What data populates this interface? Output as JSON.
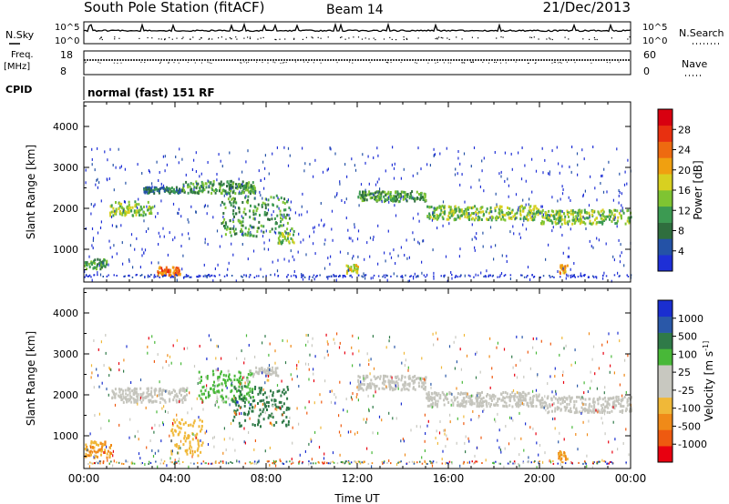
{
  "header": {
    "station": "South Pole Station (fitACF)",
    "beam": "Beam 14",
    "date": "21/Dec/2013"
  },
  "aux_panels": {
    "nsky_label": "N.Sky",
    "nsearch_label": "N.Search",
    "nsky_ticks": [
      "10^5",
      "10^0"
    ],
    "nsearch_ticks": [
      "10^5",
      "10^0"
    ],
    "freq_label": "Freq.",
    "freq_unit": "[MHz]",
    "freq_ticks": [
      "18",
      "8"
    ],
    "nave_label": "Nave",
    "nave_ticks": [
      "60",
      "0"
    ],
    "cpid_label": "CPID",
    "cpid_value": "normal (fast) 151 RF"
  },
  "colors": {
    "power": [
      "#1e2fd6",
      "#2452a6",
      "#2f6e3e",
      "#3c9a52",
      "#7fc432",
      "#d8d020",
      "#f0a010",
      "#ee6a10",
      "#e83010",
      "#d80010"
    ],
    "velocity": [
      "#e80010",
      "#ee5a10",
      "#f08a18",
      "#f0b838",
      "#c8c8c0",
      "#c8c8c0",
      "#48b838",
      "#2f7a48",
      "#2a58a8",
      "#1a2ed0"
    ],
    "velocity_neutral": "#c4c4bc"
  },
  "chart_data": [
    {
      "type": "heatmap",
      "name": "power-panel",
      "ylabel": "Slant Range [km]",
      "yticks": [
        1000,
        2000,
        3000,
        4000
      ],
      "ylim": [
        200,
        4600
      ],
      "xlim": [
        0,
        24
      ],
      "colorbar": {
        "label": "Power [dB]",
        "ticks": [
          "4",
          "8",
          "12",
          "16",
          "20",
          "24",
          "28"
        ],
        "range": [
          0,
          30
        ]
      },
      "bands": [
        {
          "t0": 0.0,
          "t1": 1.0,
          "r0": 500,
          "r1": 750,
          "level": 9
        },
        {
          "t0": 1.1,
          "t1": 3.0,
          "r0": 1800,
          "r1": 2150,
          "level": 14
        },
        {
          "t0": 2.6,
          "t1": 4.2,
          "r0": 2350,
          "r1": 2500,
          "level": 7
        },
        {
          "t0": 3.2,
          "t1": 4.2,
          "r0": 350,
          "r1": 550,
          "level": 22
        },
        {
          "t0": 4.2,
          "t1": 7.5,
          "r0": 2350,
          "r1": 2650,
          "level": 9
        },
        {
          "t0": 6.0,
          "t1": 9.0,
          "r0": 1300,
          "r1": 2300,
          "level": 10
        },
        {
          "t0": 8.5,
          "t1": 9.2,
          "r0": 1100,
          "r1": 1500,
          "level": 12
        },
        {
          "t0": 11.5,
          "t1": 12.0,
          "r0": 400,
          "r1": 600,
          "level": 16
        },
        {
          "t0": 12.0,
          "t1": 15.0,
          "r0": 2150,
          "r1": 2400,
          "level": 9
        },
        {
          "t0": 15.0,
          "t1": 20.0,
          "r0": 1700,
          "r1": 2050,
          "level": 13
        },
        {
          "t0": 20.0,
          "t1": 24.0,
          "r0": 1600,
          "r1": 1950,
          "level": 13
        },
        {
          "t0": 20.8,
          "t1": 21.2,
          "r0": 400,
          "r1": 600,
          "level": 18
        }
      ]
    },
    {
      "type": "heatmap",
      "name": "velocity-panel",
      "ylabel": "Slant Range [km]",
      "xlabel": "Time UT",
      "yticks": [
        1000,
        2000,
        3000,
        4000
      ],
      "xticks": [
        "00:00",
        "04:00",
        "08:00",
        "12:00",
        "16:00",
        "20:00",
        "00:00"
      ],
      "ylim": [
        200,
        4600
      ],
      "xlim": [
        0,
        24
      ],
      "colorbar": {
        "label": "Velocity [m s^-1]",
        "ticks": [
          "-1000",
          "-500",
          "-100",
          "-25",
          "25",
          "100",
          "500",
          "1000"
        ],
        "range": [
          -1200,
          1200
        ]
      },
      "bands": [
        {
          "t0": 0.0,
          "t1": 1.2,
          "r0": 450,
          "r1": 850,
          "velocity": -500
        },
        {
          "t0": 1.2,
          "t1": 4.5,
          "r0": 1800,
          "r1": 2150,
          "velocity": 0
        },
        {
          "t0": 3.8,
          "t1": 5.2,
          "r0": 500,
          "r1": 1400,
          "velocity": -400
        },
        {
          "t0": 5.0,
          "t1": 7.5,
          "r0": 1800,
          "r1": 2600,
          "velocity": 300
        },
        {
          "t0": 6.5,
          "t1": 9.0,
          "r0": 1200,
          "r1": 2200,
          "velocity": 600
        },
        {
          "t0": 7.5,
          "t1": 8.5,
          "r0": 2450,
          "r1": 2650,
          "velocity": -40
        },
        {
          "t0": 12.0,
          "t1": 15.0,
          "r0": 2100,
          "r1": 2450,
          "velocity": 0
        },
        {
          "t0": 15.0,
          "t1": 20.0,
          "r0": 1700,
          "r1": 2050,
          "velocity": 0
        },
        {
          "t0": 20.0,
          "t1": 24.0,
          "r0": 1550,
          "r1": 1950,
          "velocity": 0
        },
        {
          "t0": 20.8,
          "t1": 21.2,
          "r0": 400,
          "r1": 600,
          "velocity": -500
        }
      ]
    }
  ]
}
